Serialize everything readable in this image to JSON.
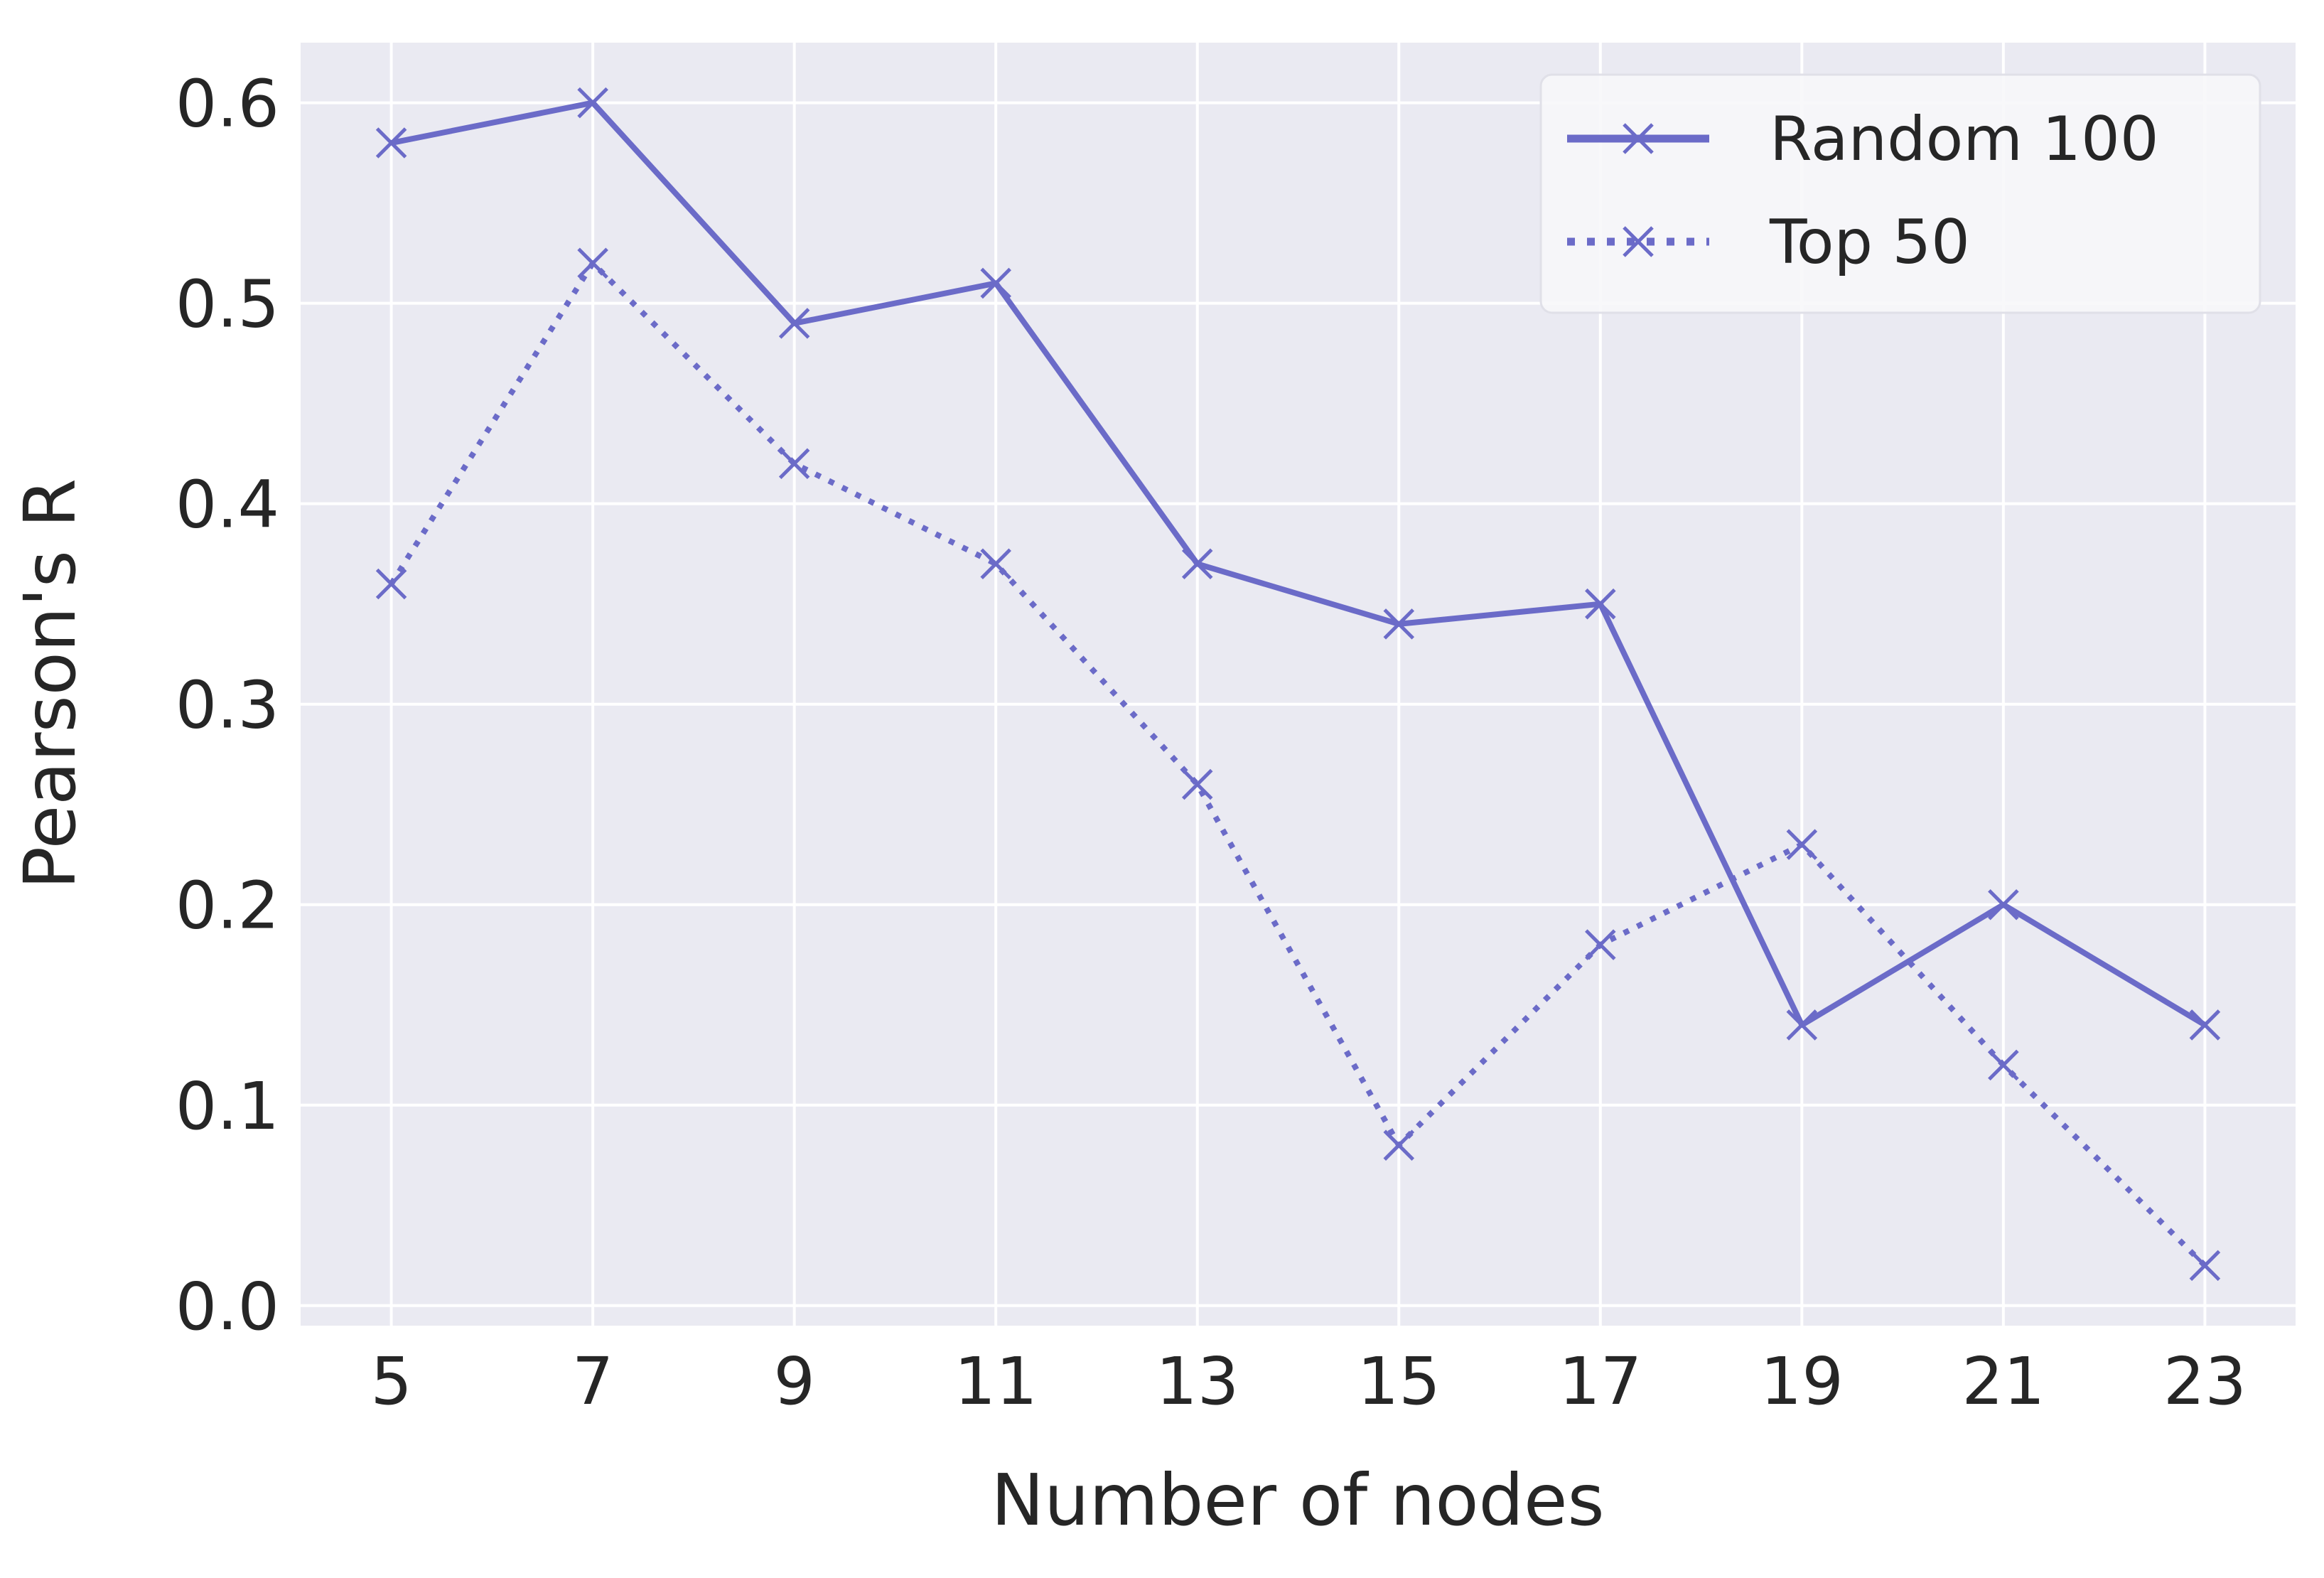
{
  "chart_data": {
    "type": "line",
    "xlabel": "Number of nodes",
    "ylabel": "Pearson's R",
    "x": [
      5,
      7,
      9,
      11,
      13,
      15,
      17,
      19,
      21,
      23
    ],
    "xticks": [
      "5",
      "7",
      "9",
      "11",
      "13",
      "15",
      "17",
      "19",
      "21",
      "23"
    ],
    "yticks": [
      "0.0",
      "0.1",
      "0.2",
      "0.3",
      "0.4",
      "0.5",
      "0.6"
    ],
    "ytick_values": [
      0.0,
      0.1,
      0.2,
      0.3,
      0.4,
      0.5,
      0.6
    ],
    "xlim": [
      4.1,
      23.9
    ],
    "ylim": [
      -0.01,
      0.63
    ],
    "grid": true,
    "legend_position": "top-right",
    "series": [
      {
        "name": "Random 100",
        "style": "solid",
        "marker": "x",
        "color": "#6b6bc8",
        "values": [
          0.58,
          0.6,
          0.49,
          0.51,
          0.37,
          0.34,
          0.35,
          0.14,
          0.2,
          0.14
        ]
      },
      {
        "name": "Top 50",
        "style": "dotted",
        "marker": "x",
        "color": "#6b6bc8",
        "values": [
          0.36,
          0.52,
          0.42,
          0.37,
          0.26,
          0.08,
          0.18,
          0.23,
          0.12,
          0.02
        ]
      }
    ]
  },
  "colors": {
    "plot_background": "#eaeaf2",
    "grid": "#ffffff",
    "text": "#262626"
  }
}
